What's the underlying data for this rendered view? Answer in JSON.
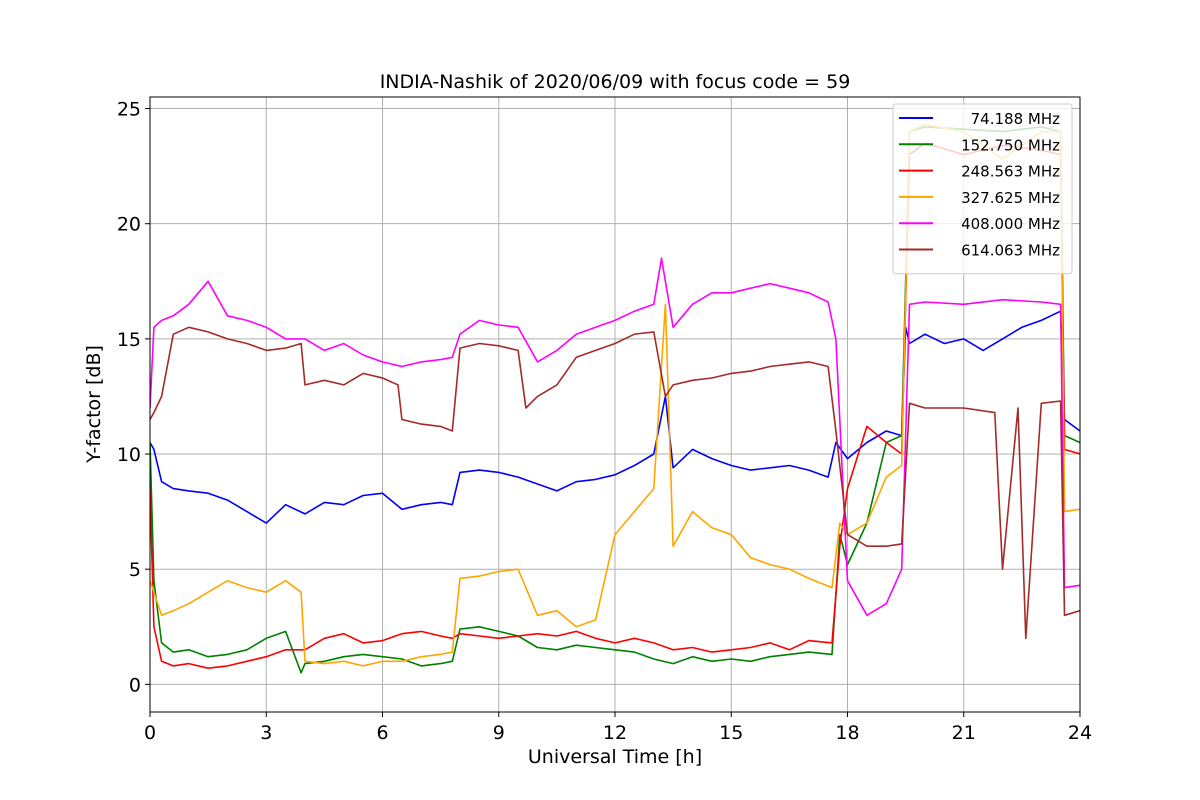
{
  "chart_data": {
    "type": "line",
    "title": "INDIA-Nashik of 2020/06/09 with focus code = 59",
    "xlabel": "Universal Time [h]",
    "ylabel": "Y-factor [dB]",
    "xlim": [
      0,
      24
    ],
    "ylim": [
      -1.2,
      25.5
    ],
    "xticks": [
      "0",
      "3",
      "6",
      "9",
      "12",
      "15",
      "18",
      "21",
      "24"
    ],
    "yticks": [
      "0",
      "5",
      "10",
      "15",
      "20",
      "25"
    ],
    "grid": true,
    "legend_position": "top-right",
    "series": [
      {
        "name": "74.188 MHz",
        "color": "#0000ff",
        "x": [
          0,
          0.1,
          0.3,
          0.6,
          1.0,
          1.5,
          2.0,
          2.5,
          3.0,
          3.5,
          4.0,
          4.5,
          5.0,
          5.5,
          6.0,
          6.5,
          7.0,
          7.5,
          7.8,
          8.0,
          8.5,
          9.0,
          9.5,
          10.0,
          10.5,
          11.0,
          11.5,
          12.0,
          12.5,
          13.0,
          13.3,
          13.5,
          14.0,
          14.5,
          15.0,
          15.5,
          16.0,
          16.5,
          17.0,
          17.5,
          17.7,
          18.0,
          18.5,
          19.0,
          19.4,
          19.5,
          19.6,
          20.0,
          20.5,
          21.0,
          21.5,
          22.0,
          22.5,
          23.0,
          23.5,
          23.6,
          24.0
        ],
        "y": [
          10.5,
          10.2,
          8.8,
          8.5,
          8.4,
          8.3,
          8.0,
          7.5,
          7.0,
          7.8,
          7.4,
          7.9,
          7.8,
          8.2,
          8.3,
          7.6,
          7.8,
          7.9,
          7.8,
          9.2,
          9.3,
          9.2,
          9.0,
          8.7,
          8.4,
          8.8,
          8.9,
          9.1,
          9.5,
          10.0,
          12.5,
          9.4,
          10.2,
          9.8,
          9.5,
          9.3,
          9.4,
          9.5,
          9.3,
          9.0,
          10.5,
          9.8,
          10.5,
          11.0,
          10.8,
          15.5,
          14.8,
          15.2,
          14.8,
          15.0,
          14.5,
          15.0,
          15.5,
          15.8,
          16.2,
          11.5,
          11.0
        ]
      },
      {
        "name": "152.750 MHz",
        "color": "#008000",
        "x": [
          0,
          0.1,
          0.3,
          0.6,
          1.0,
          1.5,
          2.0,
          2.5,
          3.0,
          3.5,
          3.9,
          4.0,
          4.5,
          5.0,
          5.5,
          6.0,
          6.5,
          7.0,
          7.5,
          7.8,
          8.0,
          8.5,
          9.0,
          9.5,
          10.0,
          10.5,
          11.0,
          11.5,
          12.0,
          12.5,
          13.0,
          13.5,
          14.0,
          14.5,
          15.0,
          15.5,
          16.0,
          16.5,
          17.0,
          17.6,
          17.8,
          18.0,
          18.5,
          19.0,
          19.4,
          19.6,
          20.0,
          21.0,
          22.0,
          23.0,
          23.5,
          23.6,
          24.0
        ],
        "y": [
          10.5,
          4.5,
          1.8,
          1.4,
          1.5,
          1.2,
          1.3,
          1.5,
          2.0,
          2.3,
          0.5,
          0.9,
          1.0,
          1.2,
          1.3,
          1.2,
          1.1,
          0.8,
          0.9,
          1.0,
          2.4,
          2.5,
          2.3,
          2.1,
          1.6,
          1.5,
          1.7,
          1.6,
          1.5,
          1.4,
          1.1,
          0.9,
          1.2,
          1.0,
          1.1,
          1.0,
          1.2,
          1.3,
          1.4,
          1.3,
          6.5,
          5.2,
          7.0,
          10.5,
          10.8,
          24.0,
          24.2,
          24.1,
          24.0,
          24.2,
          24.0,
          10.8,
          10.5
        ]
      },
      {
        "name": "248.563 MHz",
        "color": "#ff0000",
        "x": [
          0,
          0.1,
          0.3,
          0.6,
          1.0,
          1.5,
          2.0,
          2.5,
          3.0,
          3.5,
          4.0,
          4.5,
          5.0,
          5.5,
          6.0,
          6.5,
          7.0,
          7.5,
          7.8,
          8.0,
          8.5,
          9.0,
          9.5,
          10.0,
          10.5,
          11.0,
          11.5,
          12.0,
          12.5,
          13.0,
          13.5,
          14.0,
          14.5,
          15.0,
          15.5,
          16.0,
          16.5,
          17.0,
          17.6,
          17.8,
          18.0,
          18.5,
          19.0,
          19.4,
          19.6,
          20.0,
          21.0,
          22.0,
          23.0,
          23.5,
          23.6,
          24.0
        ],
        "y": [
          8.5,
          2.5,
          1.0,
          0.8,
          0.9,
          0.7,
          0.8,
          1.0,
          1.2,
          1.5,
          1.5,
          2.0,
          2.2,
          1.8,
          1.9,
          2.2,
          2.3,
          2.1,
          2.0,
          2.2,
          2.1,
          2.0,
          2.1,
          2.2,
          2.1,
          2.3,
          2.0,
          1.8,
          2.0,
          1.8,
          1.5,
          1.6,
          1.4,
          1.5,
          1.6,
          1.8,
          1.5,
          1.9,
          1.8,
          6.0,
          8.5,
          11.2,
          10.5,
          10.0,
          23.0,
          23.5,
          23.0,
          23.4,
          23.2,
          23.0,
          10.2,
          10.0
        ]
      },
      {
        "name": "327.625 MHz",
        "color": "#ffa500",
        "x": [
          0,
          0.1,
          0.3,
          0.6,
          1.0,
          1.5,
          2.0,
          2.5,
          3.0,
          3.5,
          3.9,
          4.0,
          4.5,
          5.0,
          5.5,
          6.0,
          6.5,
          7.0,
          7.5,
          7.8,
          8.0,
          8.5,
          9.0,
          9.5,
          10.0,
          10.5,
          11.0,
          11.5,
          12.0,
          12.5,
          13.0,
          13.3,
          13.5,
          14.0,
          14.5,
          15.0,
          15.5,
          16.0,
          16.5,
          17.0,
          17.6,
          17.8,
          18.0,
          18.5,
          19.0,
          19.4,
          19.6,
          20.0,
          21.0,
          22.0,
          23.0,
          23.5,
          23.6,
          24.0
        ],
        "y": [
          4.5,
          4.0,
          3.0,
          3.2,
          3.5,
          4.0,
          4.5,
          4.2,
          4.0,
          4.5,
          4.0,
          1.0,
          0.9,
          1.0,
          0.8,
          1.0,
          1.0,
          1.2,
          1.3,
          1.4,
          4.6,
          4.7,
          4.9,
          5.0,
          3.0,
          3.2,
          2.5,
          2.8,
          6.5,
          7.5,
          8.5,
          16.5,
          6.0,
          7.5,
          6.8,
          6.5,
          5.5,
          5.2,
          5.0,
          4.6,
          4.2,
          7.0,
          6.5,
          7.0,
          9.0,
          9.5,
          24.0,
          24.3,
          24.0,
          22.8,
          24.0,
          24.0,
          7.5,
          7.6
        ]
      },
      {
        "name": "408.000 MHz",
        "color": "#ff00ff",
        "x": [
          0,
          0.1,
          0.3,
          0.6,
          1.0,
          1.5,
          2.0,
          2.5,
          3.0,
          3.5,
          4.0,
          4.5,
          5.0,
          5.5,
          6.0,
          6.5,
          7.0,
          7.5,
          7.8,
          8.0,
          8.5,
          9.0,
          9.5,
          10.0,
          10.5,
          11.0,
          11.5,
          12.0,
          12.5,
          13.0,
          13.2,
          13.5,
          14.0,
          14.5,
          15.0,
          15.5,
          16.0,
          16.5,
          17.0,
          17.5,
          17.7,
          18.0,
          18.5,
          19.0,
          19.4,
          19.6,
          20.0,
          21.0,
          22.0,
          23.0,
          23.5,
          23.6,
          24.0
        ],
        "y": [
          12.0,
          15.5,
          15.8,
          16.0,
          16.5,
          17.5,
          16.0,
          15.8,
          15.5,
          15.0,
          15.0,
          14.5,
          14.8,
          14.3,
          14.0,
          13.8,
          14.0,
          14.1,
          14.2,
          15.2,
          15.8,
          15.6,
          15.5,
          14.0,
          14.5,
          15.2,
          15.5,
          15.8,
          16.2,
          16.5,
          18.5,
          15.5,
          16.5,
          17.0,
          17.0,
          17.2,
          17.4,
          17.2,
          17.0,
          16.6,
          15.0,
          4.5,
          3.0,
          3.5,
          5.0,
          16.5,
          16.6,
          16.5,
          16.7,
          16.6,
          16.5,
          4.2,
          4.3
        ]
      },
      {
        "name": "614.063 MHz",
        "color": "#a52a2a",
        "x": [
          0,
          0.1,
          0.3,
          0.6,
          1.0,
          1.5,
          2.0,
          2.5,
          3.0,
          3.5,
          3.9,
          4.0,
          4.5,
          5.0,
          5.5,
          6.0,
          6.4,
          6.5,
          7.0,
          7.5,
          7.8,
          8.0,
          8.5,
          9.0,
          9.5,
          9.7,
          10.0,
          10.5,
          11.0,
          11.5,
          12.0,
          12.5,
          13.0,
          13.3,
          13.5,
          14.0,
          14.5,
          15.0,
          15.5,
          16.0,
          16.5,
          17.0,
          17.5,
          17.7,
          18.0,
          18.5,
          19.0,
          19.4,
          19.6,
          20.0,
          21.0,
          21.8,
          22.0,
          22.4,
          22.6,
          23.0,
          23.5,
          23.6,
          24.0
        ],
        "y": [
          11.5,
          11.8,
          12.5,
          15.2,
          15.5,
          15.3,
          15.0,
          14.8,
          14.5,
          14.6,
          14.8,
          13.0,
          13.2,
          13.0,
          13.5,
          13.3,
          13.0,
          11.5,
          11.3,
          11.2,
          11.0,
          14.6,
          14.8,
          14.7,
          14.5,
          12.0,
          12.5,
          13.0,
          14.2,
          14.5,
          14.8,
          15.2,
          15.3,
          12.5,
          13.0,
          13.2,
          13.3,
          13.5,
          13.6,
          13.8,
          13.9,
          14.0,
          13.8,
          11.0,
          6.5,
          6.0,
          6.0,
          6.1,
          12.2,
          12.0,
          12.0,
          11.8,
          5.0,
          12.0,
          2.0,
          12.2,
          12.3,
          3.0,
          3.2
        ]
      }
    ]
  }
}
